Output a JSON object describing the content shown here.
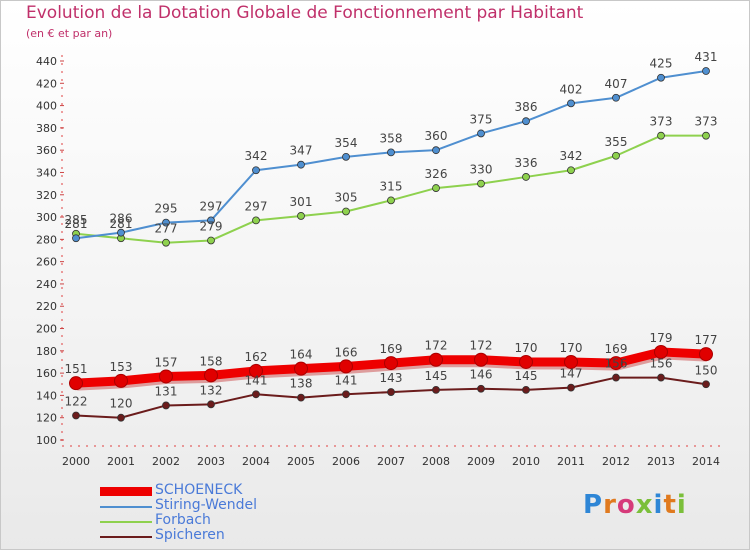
{
  "chart_data": {
    "type": "line",
    "title": "Evolution de la Dotation Globale de Fonctionnement par Habitant",
    "subtitle": "(en € et par an)",
    "xlabel": "",
    "ylabel": "",
    "categories": [
      "2000",
      "2001",
      "2002",
      "2003",
      "2004",
      "2005",
      "2006",
      "2007",
      "2008",
      "2009",
      "2010",
      "2011",
      "2012",
      "2013",
      "2014"
    ],
    "ylim": [
      100,
      440
    ],
    "yticks": [
      100,
      120,
      140,
      160,
      180,
      200,
      220,
      240,
      260,
      280,
      300,
      320,
      340,
      360,
      380,
      400,
      420,
      440
    ],
    "grid": false,
    "legend_position": "bottom-left",
    "series": [
      {
        "name": "SCHOENECK",
        "color": "#ee0000",
        "style": "thick",
        "values": [
          151,
          153,
          157,
          158,
          162,
          164,
          166,
          169,
          172,
          172,
          170,
          170,
          169,
          179,
          177
        ],
        "labels": [
          "151",
          "153",
          "157",
          "158",
          "162",
          "164",
          "166",
          "169",
          "172",
          "172",
          "170",
          "170",
          "169",
          "179",
          "177"
        ]
      },
      {
        "name": "Stiring-Wendel",
        "color": "#4f8fd0",
        "style": "normal",
        "values": [
          281,
          286,
          295,
          297,
          342,
          347,
          354,
          358,
          360,
          375,
          386,
          402,
          407,
          425,
          431
        ],
        "labels": [
          "281",
          "286",
          "295",
          "297",
          "342",
          "347",
          "354",
          "358",
          "360",
          "375",
          "386",
          "402",
          "407",
          "425",
          "431"
        ]
      },
      {
        "name": "Forbach",
        "color": "#8ed14e",
        "style": "normal",
        "values": [
          285,
          281,
          277,
          279,
          297,
          301,
          305,
          315,
          326,
          330,
          336,
          342,
          355,
          373,
          373
        ],
        "labels": [
          "285",
          "281",
          "277",
          "279",
          "297",
          "301",
          "305",
          "315",
          "326",
          "330",
          "336",
          "342",
          "355",
          "373",
          "373"
        ]
      },
      {
        "name": "Spicheren",
        "color": "#6b1c1c",
        "style": "normal",
        "values": [
          122,
          120,
          131,
          132,
          141,
          138,
          141,
          143,
          145,
          146,
          145,
          147,
          156,
          156,
          150
        ],
        "labels": [
          "122",
          "120",
          "131",
          "132",
          "141",
          "138",
          "141",
          "143",
          "145",
          "146",
          "145",
          "147",
          "156",
          "156",
          "150"
        ]
      }
    ]
  },
  "logo": {
    "text": "Proxiti"
  }
}
